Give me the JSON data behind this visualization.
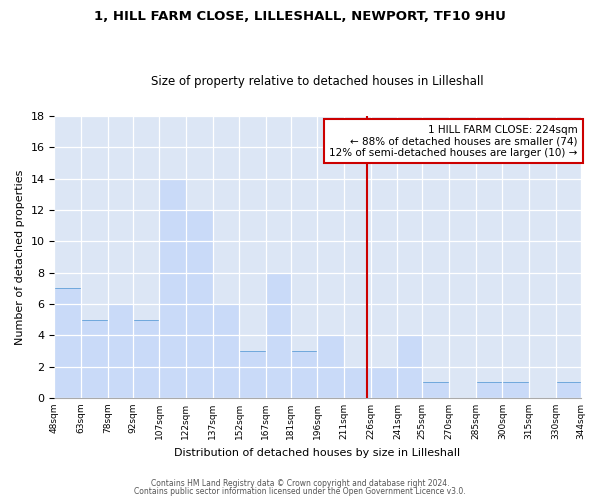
{
  "title1": "1, HILL FARM CLOSE, LILLESHALL, NEWPORT, TF10 9HU",
  "title2": "Size of property relative to detached houses in Lilleshall",
  "xlabel": "Distribution of detached houses by size in Lilleshall",
  "ylabel": "Number of detached properties",
  "bin_edges": [
    48,
    63,
    78,
    92,
    107,
    122,
    137,
    152,
    167,
    181,
    196,
    211,
    226,
    241,
    255,
    270,
    285,
    300,
    315,
    330,
    344
  ],
  "bar_heights": [
    7,
    5,
    6,
    5,
    14,
    12,
    6,
    3,
    8,
    3,
    4,
    2,
    2,
    4,
    1,
    0,
    1,
    1,
    0,
    1
  ],
  "tick_labels": [
    "48sqm",
    "63sqm",
    "78sqm",
    "92sqm",
    "107sqm",
    "122sqm",
    "137sqm",
    "152sqm",
    "167sqm",
    "181sqm",
    "196sqm",
    "211sqm",
    "226sqm",
    "241sqm",
    "255sqm",
    "270sqm",
    "285sqm",
    "300sqm",
    "315sqm",
    "330sqm",
    "344sqm"
  ],
  "bar_color": "#c9daf8",
  "bar_edge_color": "#6fa8dc",
  "vline_x": 224,
  "vline_color": "#cc0000",
  "ylim": [
    0,
    18
  ],
  "yticks": [
    0,
    2,
    4,
    6,
    8,
    10,
    12,
    14,
    16,
    18
  ],
  "annotation_title": "1 HILL FARM CLOSE: 224sqm",
  "annotation_line1": "← 88% of detached houses are smaller (74)",
  "annotation_line2": "12% of semi-detached houses are larger (10) →",
  "annotation_box_color": "#ffffff",
  "annotation_box_edge": "#cc0000",
  "footer1": "Contains HM Land Registry data © Crown copyright and database right 2024.",
  "footer2": "Contains public sector information licensed under the Open Government Licence v3.0.",
  "bg_color": "#ffffff",
  "plot_bg_color": "#dce6f5"
}
